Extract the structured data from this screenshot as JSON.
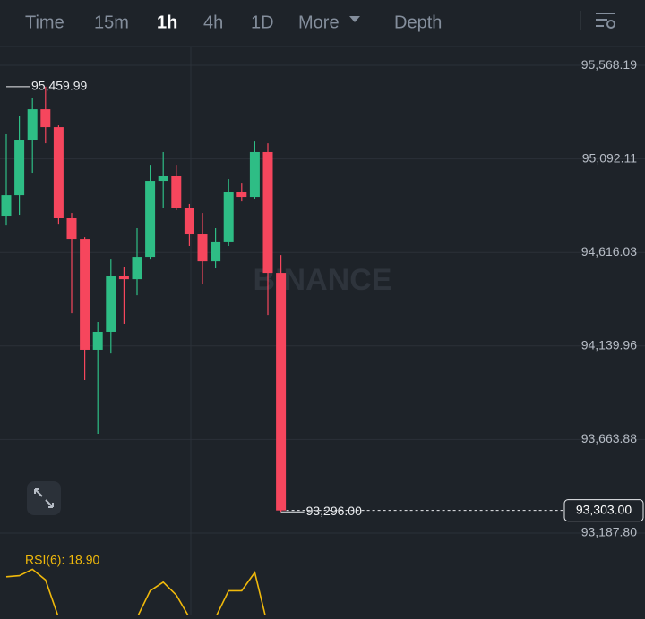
{
  "toolbar": {
    "tabs": [
      "Time",
      "15m",
      "1h",
      "4h",
      "1D",
      "More",
      "Depth"
    ],
    "active": 2
  },
  "chart_data": {
    "type": "candlestick",
    "open": [
      94799,
      94908,
      95186,
      95345,
      95254,
      94790,
      94685,
      94121,
      94212,
      94498,
      94480,
      94594,
      94981,
      95004,
      94844,
      94708,
      94571,
      94672,
      94922,
      94899,
      95127,
      94512
    ],
    "close": [
      94908,
      95186,
      95345,
      95254,
      94790,
      94685,
      94121,
      94212,
      94498,
      94480,
      94594,
      94981,
      95004,
      94844,
      94708,
      94571,
      94672,
      94922,
      94899,
      95127,
      94512,
      93303
    ],
    "high": [
      95218,
      95309,
      95400,
      95459.99,
      95263,
      94817,
      94694,
      94262,
      94580,
      94544,
      94740,
      95058,
      95127,
      95058,
      94863,
      94817,
      94740,
      94990,
      94967,
      95181,
      95172,
      94603
    ],
    "low": [
      94753,
      94808,
      95022,
      95172,
      94762,
      94307,
      93966,
      93693,
      94102,
      94253,
      94398,
      94580,
      94844,
      94831,
      94649,
      94453,
      94535,
      94649,
      94876,
      94890,
      94298,
      93296
    ],
    "up_color": "#2ebd85",
    "down_color": "#f6465d",
    "ylim": [
      93124,
      95664
    ],
    "yticks": [
      {
        "value": 95568.19,
        "label": "95,568.19"
      },
      {
        "value": 95092.11,
        "label": "95,092.11"
      },
      {
        "value": 94616.03,
        "label": "94,616.03"
      },
      {
        "value": 94139.96,
        "label": "94,139.96"
      },
      {
        "value": 93663.88,
        "label": "93,663.88"
      },
      {
        "value": 93187.8,
        "label": "93,187.80"
      }
    ],
    "grid": true,
    "max_marker": {
      "value": 95459.99,
      "label": "95,459.99"
    },
    "min_marker": {
      "value": 93296.0,
      "label": "93,296.00"
    },
    "last_price": {
      "value": 93303.0,
      "label": "93,303.00"
    },
    "watermark": "BINANCE",
    "rsi": {
      "label": "RSI(6): 18.90",
      "color": "#f0b90b",
      "ylim": [
        0,
        100
      ],
      "values": [
        71,
        72,
        78,
        68,
        33,
        30,
        20,
        28,
        25,
        30,
        33,
        58,
        66,
        54,
        33,
        25,
        33,
        58,
        58,
        75,
        25,
        18.9
      ]
    }
  }
}
